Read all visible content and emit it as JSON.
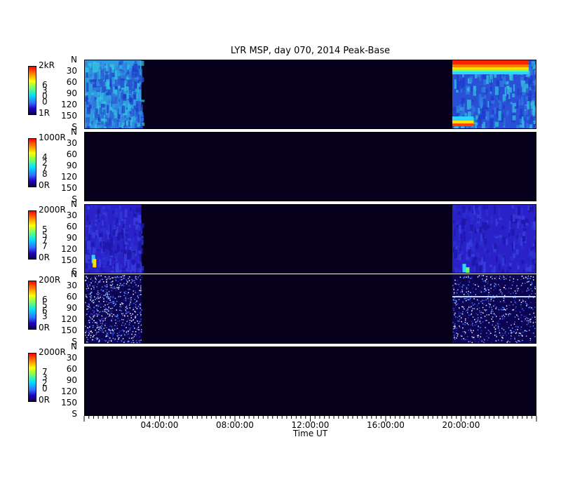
{
  "chart_data": {
    "type": "heatmap",
    "title": "LYR MSP, day 070, 2014 Peak-Base",
    "xlabel": "Time UT",
    "xlim": [
      "00:00:00",
      "24:00:00"
    ],
    "x_ticks": [
      "04:00:00",
      "08:00:00",
      "12:00:00",
      "16:00:00",
      "20:00:00"
    ],
    "y_ticks": [
      "N",
      "30",
      "60",
      "90",
      "120",
      "150",
      "S"
    ],
    "grid": false,
    "data_coverage": [
      {
        "start": "00:00:00",
        "end": "03:00:00"
      },
      {
        "start": "19:30:00",
        "end": "24:00:00"
      }
    ],
    "panels": [
      {
        "colorbar_max": "2kR",
        "colorbar_min": "1R",
        "colorbar_code": [
          "6",
          "3",
          "0",
          "0"
        ],
        "intensity": "high"
      },
      {
        "colorbar_max": "1000R",
        "colorbar_min": "0R",
        "colorbar_code": [
          "4",
          "2",
          "7",
          "8"
        ],
        "intensity": "none"
      },
      {
        "colorbar_max": "2000R",
        "colorbar_min": "0R",
        "colorbar_code": [
          "5",
          "5",
          "7",
          "7"
        ],
        "intensity": "medium"
      },
      {
        "colorbar_max": "200R",
        "colorbar_min": "0R",
        "colorbar_code": [
          "6",
          "5",
          "6",
          "3"
        ],
        "intensity": "speckle"
      },
      {
        "colorbar_max": "2000R",
        "colorbar_min": "0R",
        "colorbar_code": [
          "7",
          "3",
          "2",
          "0"
        ],
        "intensity": "none"
      }
    ]
  },
  "colors": {
    "background": "#06001c",
    "colormap": [
      "#130050",
      "#2000c0",
      "#3070ff",
      "#00e0ff",
      "#6cff6c",
      "#ffff00",
      "#ff7a00",
      "#ff0000"
    ]
  }
}
